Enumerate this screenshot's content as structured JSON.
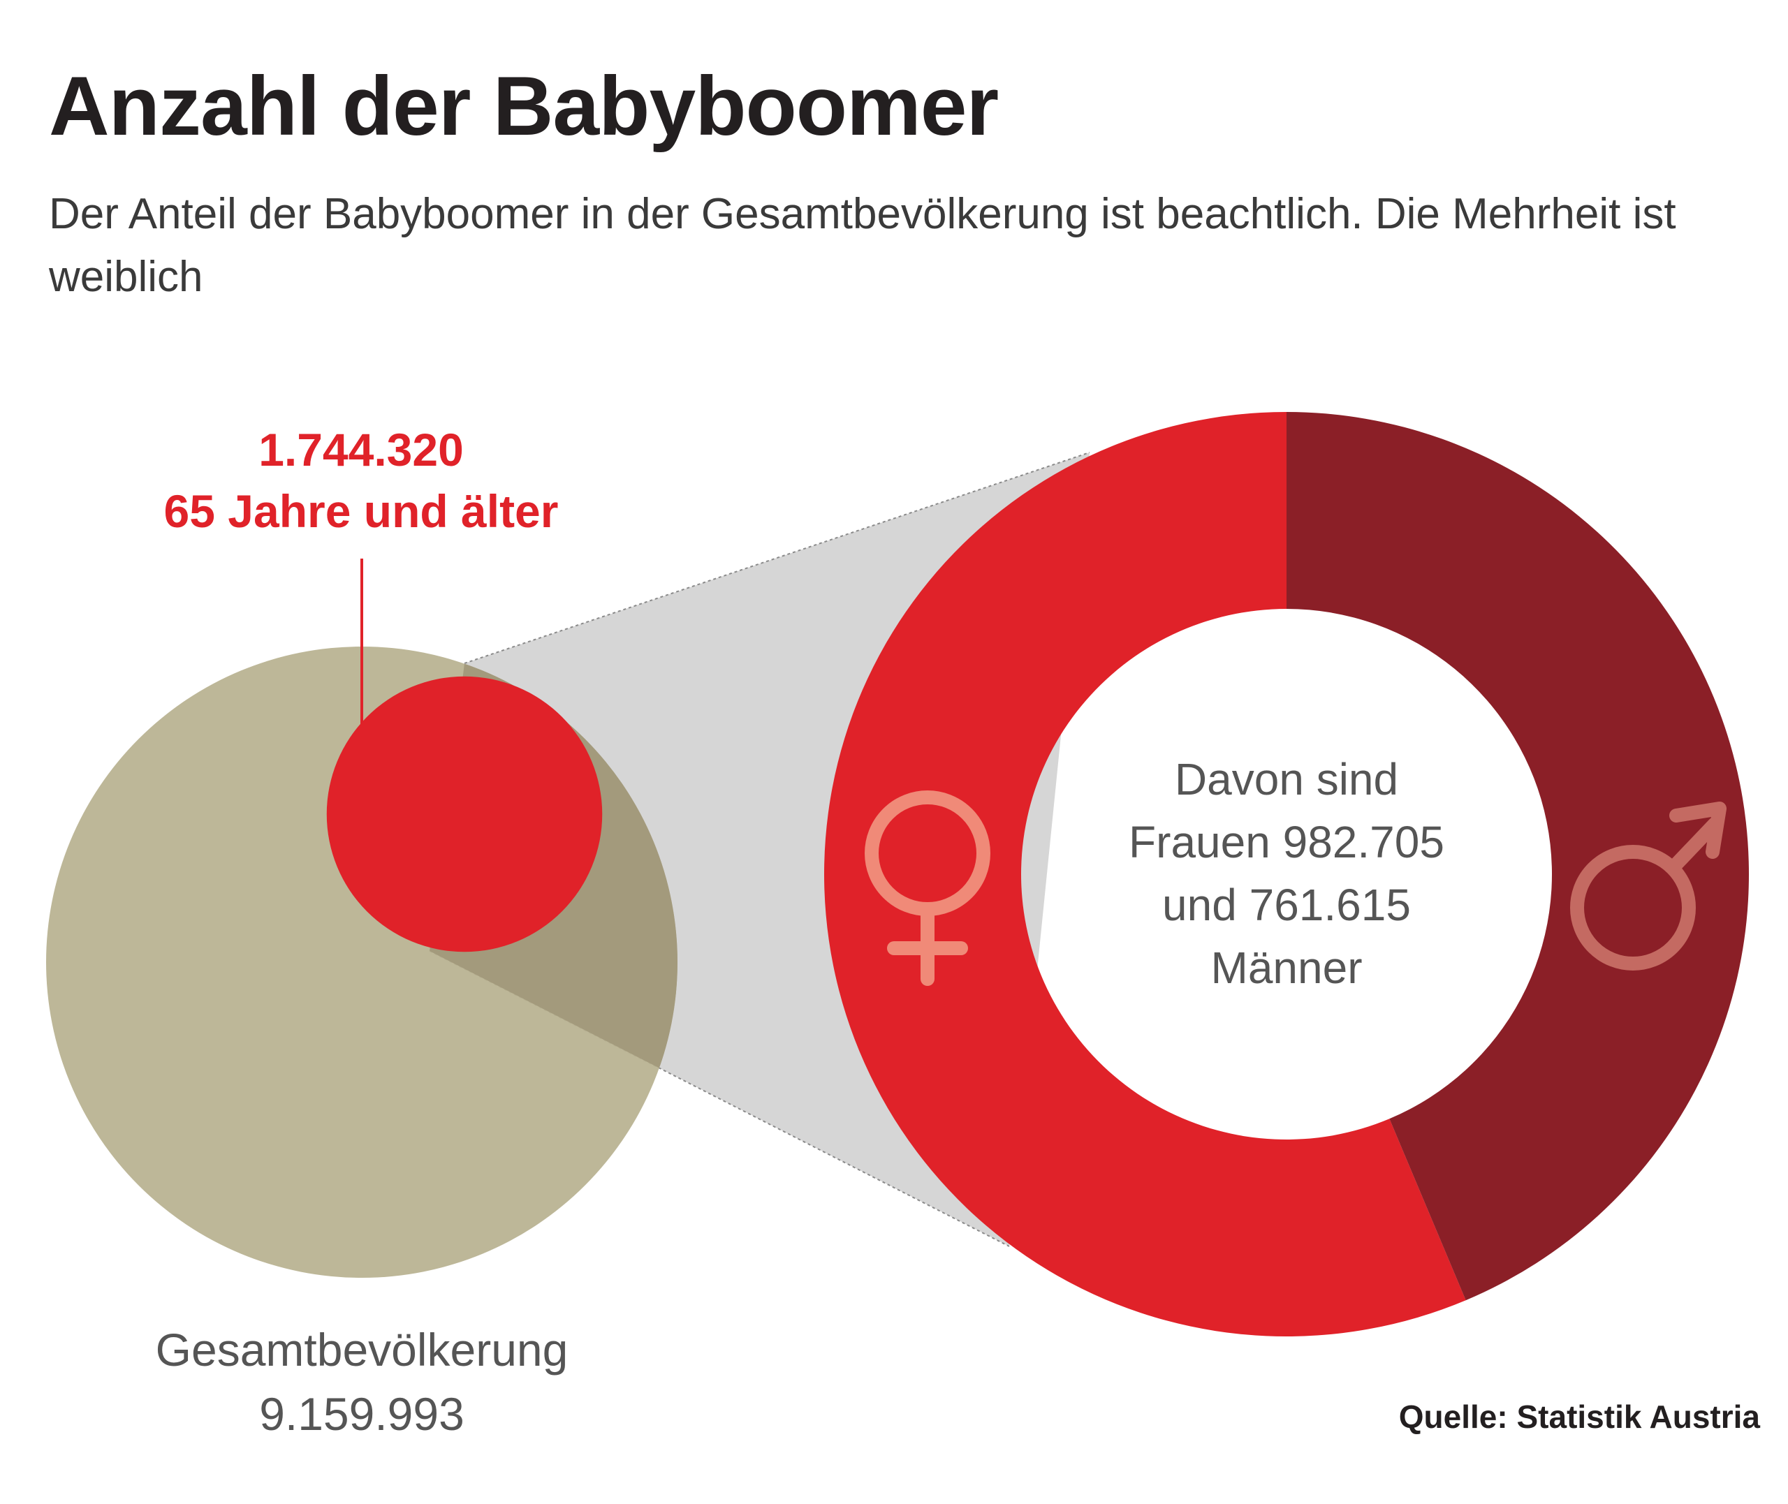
{
  "title": "Anzahl der Babyboomer",
  "subtitle": "Der Anteil der Babyboomer in der Gesamtbevölkerung ist beachtlich. Die Mehrheit ist weiblich",
  "source": "Quelle: Statistik Austria",
  "colors": {
    "total": "#b8b190",
    "overlap": "#a39a7c",
    "seniors": "#e02229",
    "female": "#e02229",
    "male": "#8b1f27",
    "connector": "#d6d6d6",
    "female_symbol": "#f08a78",
    "male_symbol": "#c46a62"
  },
  "chart_data": [
    {
      "type": "bubble",
      "items": [
        {
          "name": "Gesamtbevölkerung",
          "value": 9159993,
          "value_label": "9.159.993"
        },
        {
          "name": "65 Jahre und älter",
          "value": 1744320,
          "value_label": "1.744.320"
        }
      ]
    },
    {
      "type": "pie",
      "style": "donut",
      "center_text": [
        "Davon sind",
        "Frauen 982.705",
        "und 761.615",
        "Männer"
      ],
      "slices": [
        {
          "name": "Frauen",
          "value": 982705,
          "icon": "female-symbol-icon"
        },
        {
          "name": "Männer",
          "value": 761615,
          "icon": "male-symbol-icon"
        }
      ]
    }
  ]
}
